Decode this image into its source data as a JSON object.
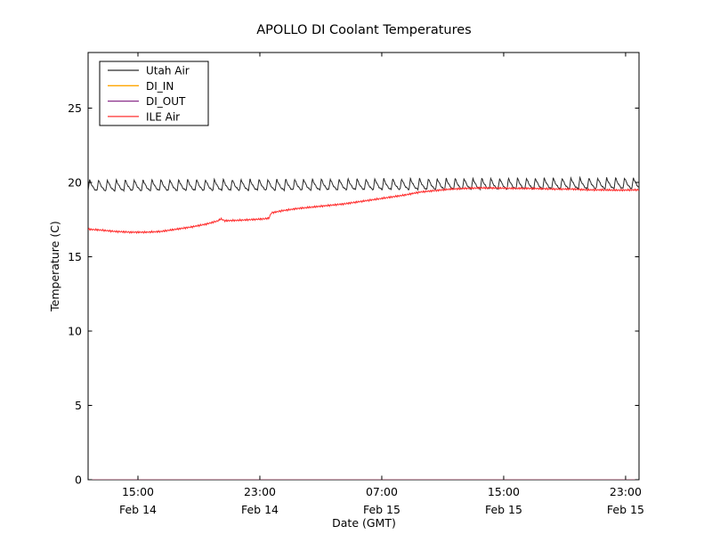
{
  "chart_data": {
    "type": "line",
    "title": "APOLLO DI Coolant Temperatures",
    "xlabel": "Date (GMT)",
    "ylabel": "Temperature (C)",
    "x_unit_note": "hours since Feb 14 00:00 GMT",
    "xlim": [
      11.73,
      47.88
    ],
    "ylim": [
      0,
      28.74
    ],
    "grid": false,
    "yticks": [
      0,
      5,
      10,
      15,
      20,
      25
    ],
    "xticks": [
      {
        "t": 15,
        "time": "15:00",
        "date": "Feb 14"
      },
      {
        "t": 23,
        "time": "23:00",
        "date": "Feb 14"
      },
      {
        "t": 31,
        "time": "07:00",
        "date": "Feb 15"
      },
      {
        "t": 39,
        "time": "15:00",
        "date": "Feb 15"
      },
      {
        "t": 47,
        "time": "23:00",
        "date": "Feb 15"
      }
    ],
    "legend": {
      "position": "upper-left",
      "entries": [
        {
          "label": "Utah Air",
          "color": "#2a2a2a"
        },
        {
          "label": "DI_IN",
          "color": "#ffa500"
        },
        {
          "label": "DI_OUT",
          "color": "#8a2f8a"
        },
        {
          "label": "ILE Air",
          "color": "#ff3030"
        }
      ]
    },
    "series": [
      {
        "name": "Utah Air",
        "color": "#2a2a2a",
        "pattern": "sawtooth",
        "period_hours": 0.585,
        "rise_fraction": 0.16,
        "amplitude_c": 0.72,
        "baseline_keyframes": {
          "t": [
            11.73,
            25.0,
            35.0,
            47.88
          ],
          "v": [
            19.45,
            19.5,
            19.55,
            19.6
          ]
        },
        "description": "AC-cycling sawtooth oscillating between ~19.5 and ~20.2 C across the full time span"
      },
      {
        "name": "DI_IN",
        "color": "#ffa500",
        "pattern": "constant",
        "value": 0.0
      },
      {
        "name": "DI_OUT",
        "color": "#8a2f8a",
        "pattern": "constant",
        "value": 0.0
      },
      {
        "name": "ILE Air",
        "color": "#ff3030",
        "pattern": "keyframes",
        "keyframes": {
          "t": [
            11.73,
            12.5,
            13.5,
            14.5,
            15.5,
            16.5,
            17.5,
            18.5,
            19.5,
            20.2,
            20.45,
            20.7,
            21.5,
            22.5,
            23.3,
            23.6,
            23.75,
            24.5,
            25.5,
            26.5,
            27.5,
            28.5,
            29.5,
            30.5,
            31.5,
            32.5,
            33.5,
            34.5,
            35.5,
            36.5,
            37.5,
            38.5,
            39.5,
            40.5,
            41.5,
            42.5,
            43.5,
            44.5,
            45.5,
            46.5,
            47.88
          ],
          "v": [
            16.85,
            16.8,
            16.7,
            16.65,
            16.65,
            16.7,
            16.85,
            17.0,
            17.2,
            17.4,
            17.55,
            17.42,
            17.45,
            17.5,
            17.55,
            17.6,
            17.95,
            18.1,
            18.25,
            18.35,
            18.45,
            18.55,
            18.7,
            18.85,
            19.0,
            19.15,
            19.35,
            19.45,
            19.55,
            19.6,
            19.63,
            19.62,
            19.6,
            19.6,
            19.58,
            19.55,
            19.55,
            19.5,
            19.5,
            19.48,
            19.5
          ]
        },
        "description": "Starts ~16.8 C, small dip to ~16.65, gradual rise with a bump at ~20:24 and a step at ~23:45 Feb 14, leveling near ~19.5-19.6 C from mid Feb 15 onward"
      }
    ],
    "colors": {
      "background": "#ffffff",
      "spine": "#000000",
      "bottom_edge_blend": "#5f3d44"
    }
  }
}
